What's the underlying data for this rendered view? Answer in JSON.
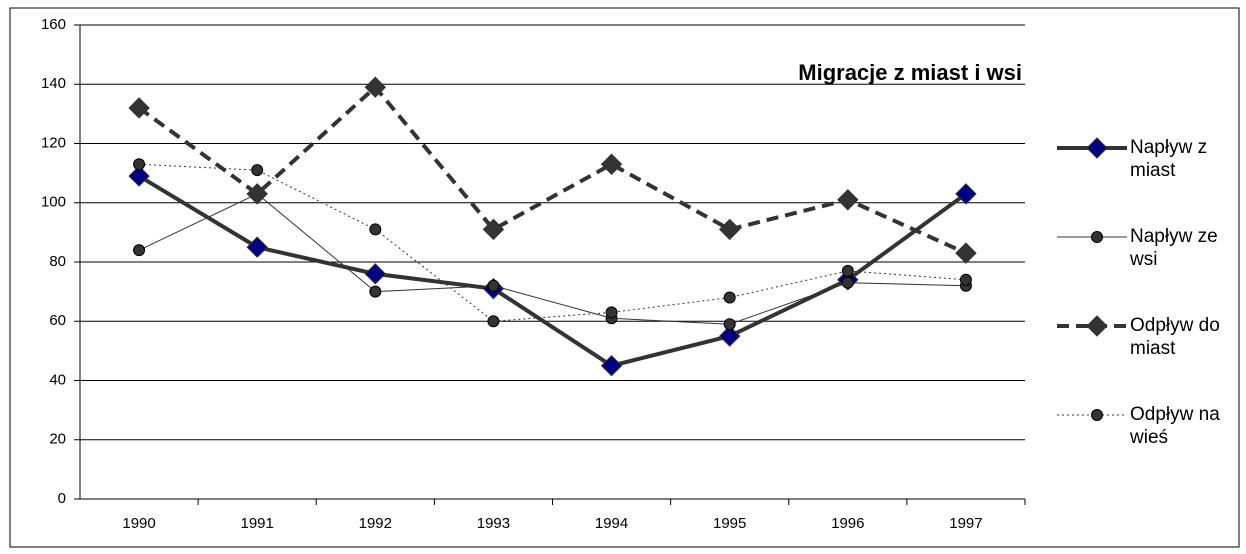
{
  "chart_data": {
    "type": "line",
    "title": "Migracje z miast i wsi",
    "categories": [
      "1990",
      "1991",
      "1992",
      "1993",
      "1994",
      "1995",
      "1996",
      "1997"
    ],
    "series": [
      {
        "name": "Napływ z miast",
        "color": "#333333",
        "marker_color": "#000080",
        "marker": "diamond",
        "dash": "solid",
        "weight": "thick",
        "values": [
          109,
          85,
          76,
          71,
          45,
          55,
          74,
          103
        ]
      },
      {
        "name": "Napływ ze wsi",
        "color": "#333333",
        "marker_color": "#333333",
        "marker": "circle",
        "dash": "solid",
        "weight": "thin",
        "values": [
          84,
          103,
          70,
          72,
          61,
          59,
          73,
          72
        ]
      },
      {
        "name": "Odpływ do miast",
        "color": "#333333",
        "marker_color": "#333333",
        "marker": "diamond",
        "dash": "dashed",
        "weight": "thick",
        "values": [
          132,
          103,
          139,
          91,
          113,
          91,
          101,
          83
        ]
      },
      {
        "name": "Odpływ na wieś",
        "color": "#333333",
        "marker_color": "#333333",
        "marker": "circle",
        "dash": "dotted",
        "weight": "thin",
        "values": [
          113,
          111,
          91,
          60,
          63,
          68,
          77,
          74
        ]
      }
    ],
    "ylim": [
      0,
      160
    ],
    "yticks": [
      0,
      20,
      40,
      60,
      80,
      100,
      120,
      140,
      160
    ],
    "grid": true,
    "legend": "right"
  }
}
